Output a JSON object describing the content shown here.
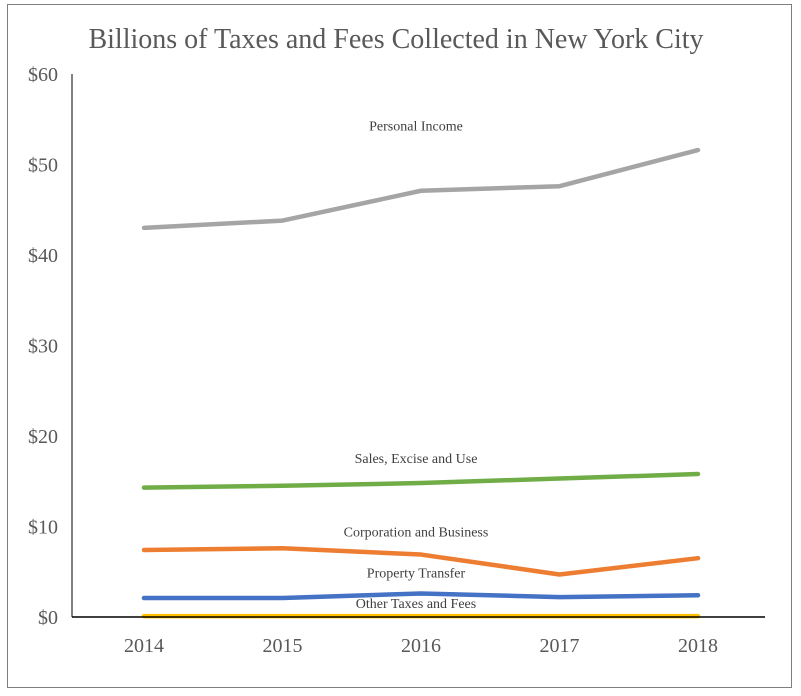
{
  "chart_data": {
    "type": "line",
    "title": "Billions of Taxes and Fees Collected in New York City",
    "xlabel": "",
    "ylabel": "",
    "categories": [
      "2014",
      "2015",
      "2016",
      "2017",
      "2018"
    ],
    "ylim": [
      0,
      60
    ],
    "yticks": [
      0,
      10,
      20,
      30,
      40,
      50,
      60
    ],
    "ytick_labels": [
      "$0",
      "$10",
      "$20",
      "$30",
      "$40",
      "$50",
      "$60"
    ],
    "grid": false,
    "legend": "inline labels",
    "series": [
      {
        "name": "Personal Income",
        "color": "#a5a5a5",
        "values": [
          43.0,
          43.8,
          47.1,
          47.6,
          51.6
        ]
      },
      {
        "name": "Sales, Excise and Use",
        "color": "#70ad47",
        "values": [
          14.3,
          14.5,
          14.8,
          15.3,
          15.8
        ]
      },
      {
        "name": "Corporation and Business",
        "color": "#ed7d31",
        "values": [
          7.4,
          7.6,
          6.9,
          4.7,
          6.5
        ]
      },
      {
        "name": "Property Transfer",
        "color": "#4472c4",
        "values": [
          2.1,
          2.1,
          2.6,
          2.2,
          2.4
        ]
      },
      {
        "name": "Other Taxes and Fees",
        "color": "#ffc000",
        "values": [
          0.1,
          0.1,
          0.1,
          0.1,
          0.1
        ]
      }
    ]
  }
}
